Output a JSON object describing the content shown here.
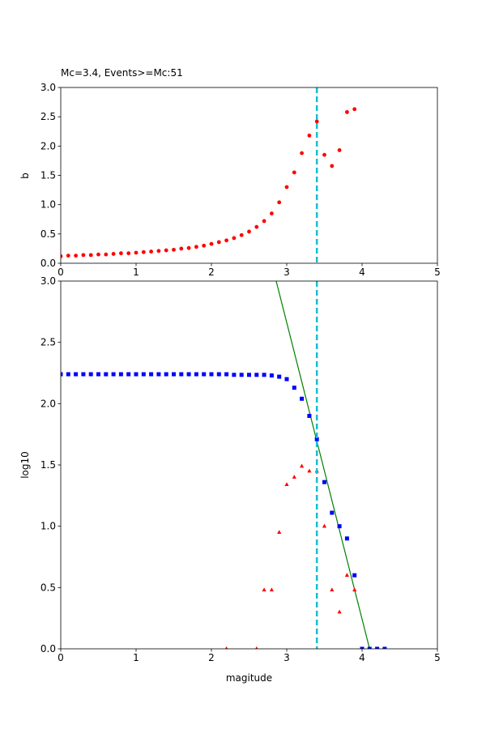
{
  "chart_data": [
    {
      "type": "scatter",
      "title": "Mc=3.4, Events>=Mc:51",
      "xlabel": "",
      "ylabel": "b",
      "xlim": [
        0,
        5
      ],
      "ylim": [
        0,
        3
      ],
      "xticks": [
        "0",
        "1",
        "2",
        "3",
        "4",
        "5"
      ],
      "yticks": [
        "0.0",
        "0.5",
        "1.0",
        "1.5",
        "2.0",
        "2.5",
        "3.0"
      ],
      "grid": false,
      "vline": {
        "x": 3.4,
        "color": "#17becf",
        "style": "dashed"
      },
      "series": [
        {
          "marker": "circle",
          "color": "#ff0000",
          "points": [
            [
              0.0,
              0.12
            ],
            [
              0.1,
              0.13
            ],
            [
              0.2,
              0.13
            ],
            [
              0.3,
              0.14
            ],
            [
              0.4,
              0.14
            ],
            [
              0.5,
              0.15
            ],
            [
              0.6,
              0.15
            ],
            [
              0.7,
              0.16
            ],
            [
              0.8,
              0.17
            ],
            [
              0.9,
              0.17
            ],
            [
              1.0,
              0.18
            ],
            [
              1.1,
              0.19
            ],
            [
              1.2,
              0.2
            ],
            [
              1.3,
              0.21
            ],
            [
              1.4,
              0.22
            ],
            [
              1.5,
              0.23
            ],
            [
              1.6,
              0.25
            ],
            [
              1.7,
              0.26
            ],
            [
              1.8,
              0.28
            ],
            [
              1.9,
              0.3
            ],
            [
              2.0,
              0.33
            ],
            [
              2.1,
              0.36
            ],
            [
              2.2,
              0.39
            ],
            [
              2.3,
              0.43
            ],
            [
              2.4,
              0.48
            ],
            [
              2.5,
              0.54
            ],
            [
              2.6,
              0.62
            ],
            [
              2.7,
              0.72
            ],
            [
              2.8,
              0.85
            ],
            [
              2.9,
              1.04
            ],
            [
              3.0,
              1.3
            ],
            [
              3.1,
              1.55
            ],
            [
              3.2,
              1.88
            ],
            [
              3.3,
              2.18
            ],
            [
              3.4,
              2.42
            ],
            [
              3.5,
              1.85
            ],
            [
              3.6,
              1.66
            ],
            [
              3.7,
              1.93
            ],
            [
              3.8,
              2.58
            ],
            [
              3.9,
              2.63
            ]
          ]
        }
      ]
    },
    {
      "type": "scatter",
      "title": "",
      "xlabel": "magitude",
      "ylabel": "log10",
      "xlim": [
        0,
        5
      ],
      "ylim": [
        0,
        3
      ],
      "xticks": [
        "0",
        "1",
        "2",
        "3",
        "4",
        "5"
      ],
      "yticks": [
        "0.0",
        "0.5",
        "1.0",
        "1.5",
        "2.0",
        "2.5",
        "3.0"
      ],
      "grid": false,
      "vline": {
        "x": 3.4,
        "color": "#17becf",
        "style": "dashed"
      },
      "fit_line": {
        "color": "#008000",
        "points": [
          [
            2.86,
            3.0
          ],
          [
            4.1,
            0.0
          ]
        ]
      },
      "series": [
        {
          "marker": "square",
          "color": "#0000ff",
          "points": [
            [
              0.0,
              2.24
            ],
            [
              0.1,
              2.24
            ],
            [
              0.2,
              2.24
            ],
            [
              0.3,
              2.24
            ],
            [
              0.4,
              2.24
            ],
            [
              0.5,
              2.24
            ],
            [
              0.6,
              2.24
            ],
            [
              0.7,
              2.24
            ],
            [
              0.8,
              2.24
            ],
            [
              0.9,
              2.24
            ],
            [
              1.0,
              2.24
            ],
            [
              1.1,
              2.24
            ],
            [
              1.2,
              2.24
            ],
            [
              1.3,
              2.24
            ],
            [
              1.4,
              2.24
            ],
            [
              1.5,
              2.24
            ],
            [
              1.6,
              2.24
            ],
            [
              1.7,
              2.24
            ],
            [
              1.8,
              2.24
            ],
            [
              1.9,
              2.24
            ],
            [
              2.0,
              2.24
            ],
            [
              2.1,
              2.24
            ],
            [
              2.2,
              2.24
            ],
            [
              2.3,
              2.235
            ],
            [
              2.4,
              2.235
            ],
            [
              2.5,
              2.235
            ],
            [
              2.6,
              2.235
            ],
            [
              2.7,
              2.235
            ],
            [
              2.8,
              2.23
            ],
            [
              2.9,
              2.22
            ],
            [
              3.0,
              2.2
            ],
            [
              3.1,
              2.13
            ],
            [
              3.2,
              2.04
            ],
            [
              3.3,
              1.9
            ],
            [
              3.4,
              1.71
            ],
            [
              3.5,
              1.36
            ],
            [
              3.6,
              1.11
            ],
            [
              3.7,
              1.0
            ],
            [
              3.8,
              0.9
            ],
            [
              3.9,
              0.6
            ],
            [
              4.0,
              0.0
            ],
            [
              4.1,
              0.0
            ],
            [
              4.2,
              0.0
            ],
            [
              4.3,
              0.0
            ]
          ]
        },
        {
          "marker": "triangle",
          "color": "#ff0000",
          "points": [
            [
              2.2,
              0.0
            ],
            [
              2.6,
              0.0
            ],
            [
              2.7,
              0.48
            ],
            [
              2.8,
              0.48
            ],
            [
              2.9,
              0.95
            ],
            [
              3.0,
              1.34
            ],
            [
              3.1,
              1.4
            ],
            [
              3.2,
              1.49
            ],
            [
              3.3,
              1.45
            ],
            [
              3.4,
              1.45
            ],
            [
              3.5,
              1.0
            ],
            [
              3.6,
              0.48
            ],
            [
              3.7,
              0.3
            ],
            [
              3.8,
              0.6
            ],
            [
              3.9,
              0.48
            ]
          ]
        }
      ]
    }
  ]
}
